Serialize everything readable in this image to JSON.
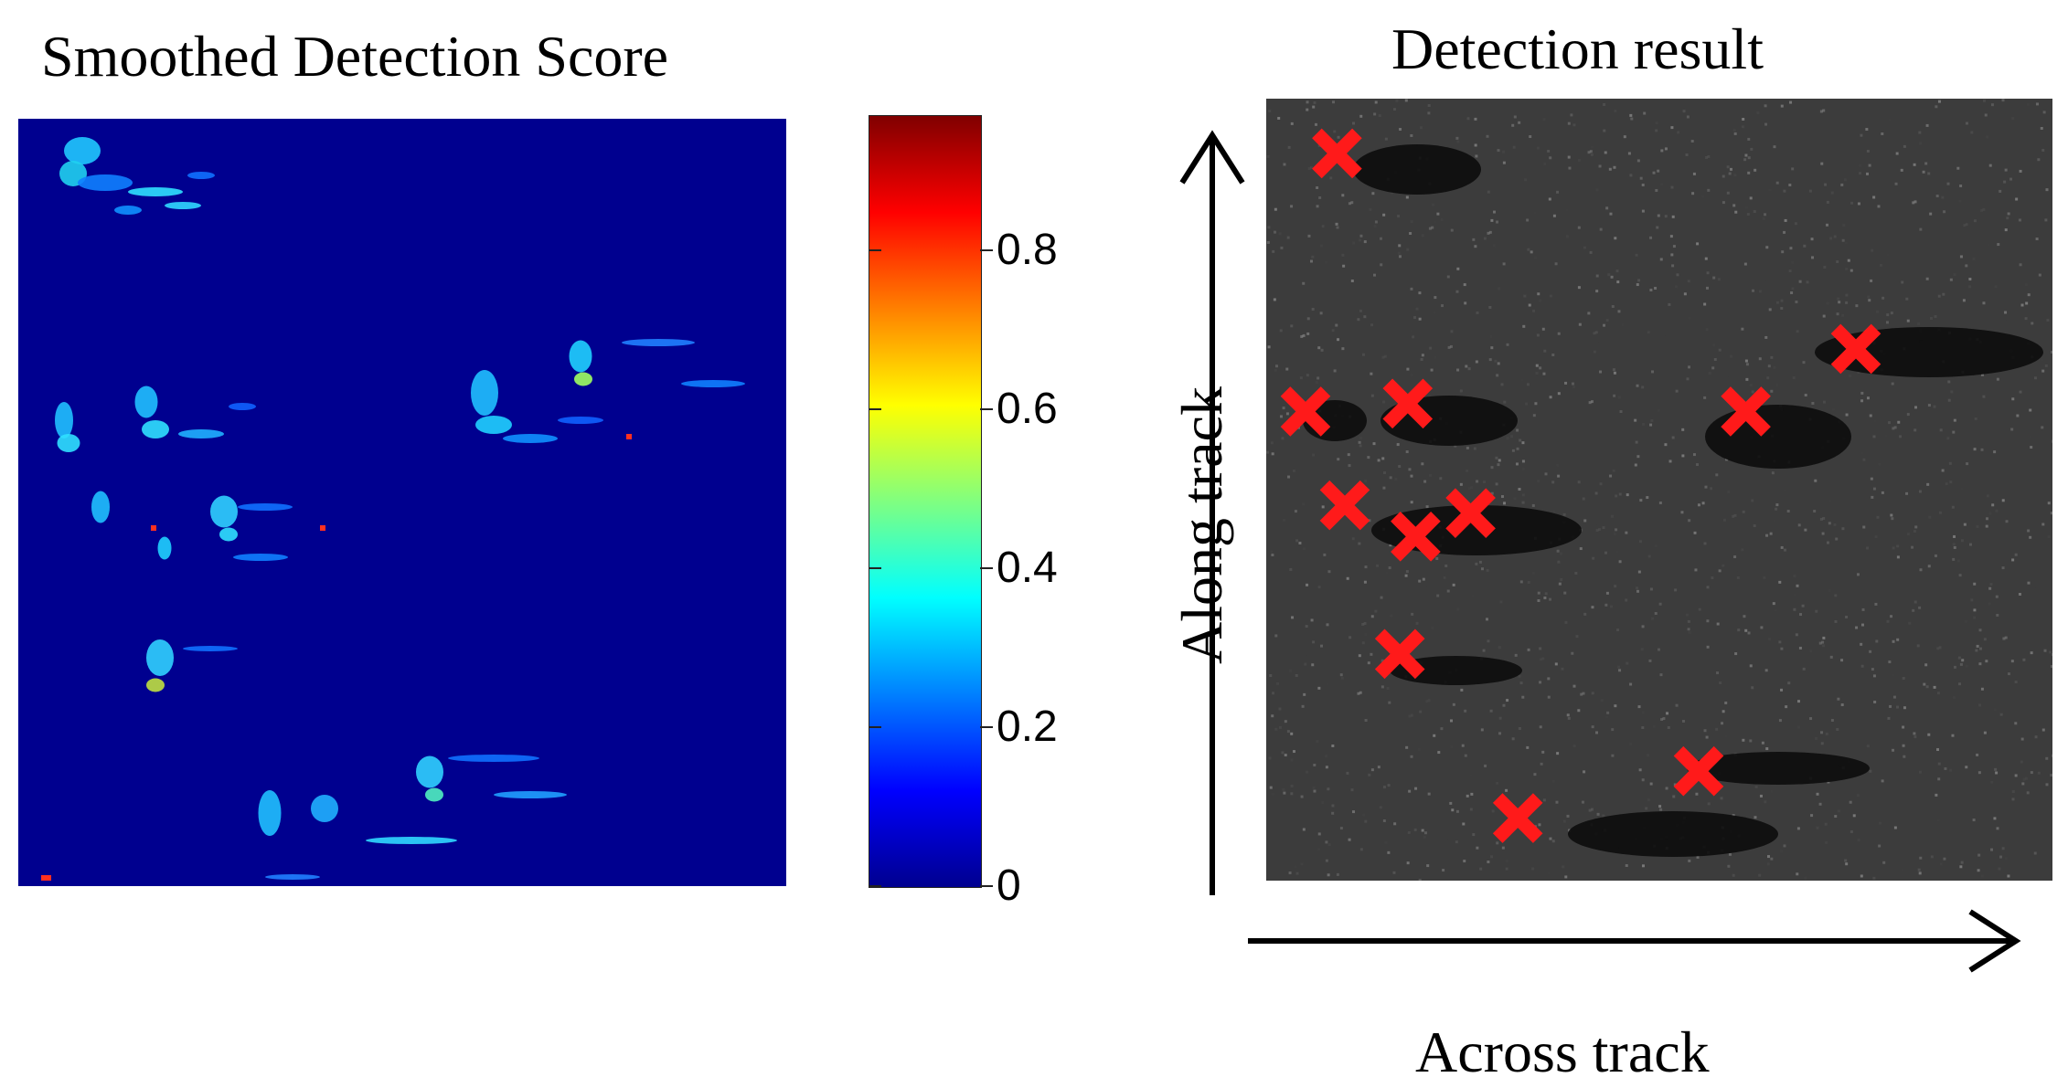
{
  "left_panel": {
    "title": "Smoothed Detection Score"
  },
  "right_panel": {
    "title": "Detection result",
    "xlabel": "Across track",
    "ylabel": "Along track"
  },
  "colors": {
    "heatmap_background": "#00008f",
    "marker": "#ff1a1a",
    "sonar_background": "#3c3c3c"
  },
  "chart_data": [
    {
      "type": "heatmap",
      "title": "Smoothed Detection Score",
      "colormap": "jet",
      "colorbar": {
        "range": [
          0,
          0.97
        ],
        "ticks": [
          "0",
          "0.2",
          "0.4",
          "0.6",
          "0.8"
        ]
      },
      "grid": false
    },
    {
      "type": "scatter",
      "title": "Detection result",
      "xlabel": "Across track",
      "ylabel": "Along track",
      "marker": "x",
      "marker_color": "#ff1a1a",
      "detections": [
        {
          "x": 0.09,
          "y": 0.07
        },
        {
          "x": 0.05,
          "y": 0.4
        },
        {
          "x": 0.18,
          "y": 0.39
        },
        {
          "x": 0.1,
          "y": 0.52
        },
        {
          "x": 0.19,
          "y": 0.56
        },
        {
          "x": 0.26,
          "y": 0.53
        },
        {
          "x": 0.17,
          "y": 0.71
        },
        {
          "x": 0.32,
          "y": 0.92
        },
        {
          "x": 0.55,
          "y": 0.86
        },
        {
          "x": 0.61,
          "y": 0.4
        },
        {
          "x": 0.75,
          "y": 0.32
        }
      ]
    }
  ]
}
